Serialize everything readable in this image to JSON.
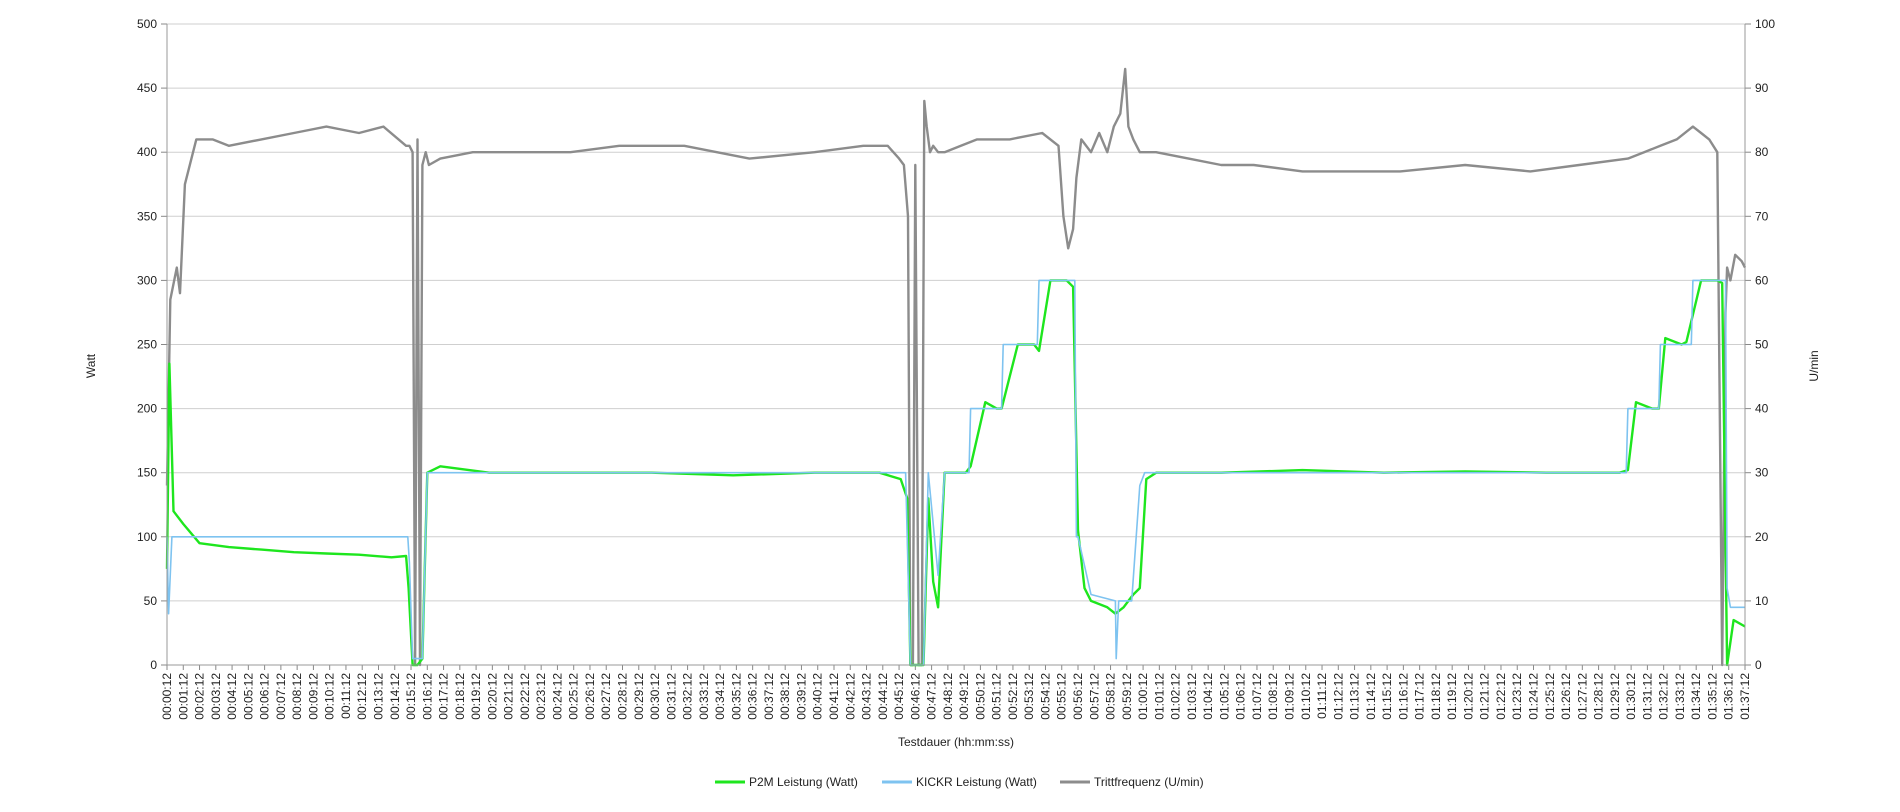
{
  "chart_data": {
    "type": "line",
    "title": "",
    "xlabel": "Testdauer (hh:mm:ss)",
    "ylabel_left": "Watt",
    "ylabel_right": "U/min",
    "ylim_left": [
      0,
      500
    ],
    "ylim_right": [
      0,
      100
    ],
    "yticks_left": [
      0,
      50,
      100,
      150,
      200,
      250,
      300,
      350,
      400,
      450,
      500
    ],
    "yticks_right": [
      0,
      10,
      20,
      30,
      40,
      50,
      60,
      70,
      80,
      90,
      100
    ],
    "grid": "horizontal",
    "legend_position": "bottom",
    "x_ticks": [
      "00:00:12",
      "00:01:12",
      "00:02:12",
      "00:03:12",
      "00:04:12",
      "00:05:12",
      "00:06:12",
      "00:07:12",
      "00:08:12",
      "00:09:12",
      "00:10:12",
      "00:11:12",
      "00:12:12",
      "00:13:12",
      "00:14:12",
      "00:15:12",
      "00:16:12",
      "00:17:12",
      "00:18:12",
      "00:19:12",
      "00:20:12",
      "00:21:12",
      "00:22:12",
      "00:23:12",
      "00:24:12",
      "00:25:12",
      "00:26:12",
      "00:27:12",
      "00:28:12",
      "00:29:12",
      "00:30:12",
      "00:31:12",
      "00:32:12",
      "00:33:12",
      "00:34:12",
      "00:35:12",
      "00:36:12",
      "00:37:12",
      "00:38:12",
      "00:39:12",
      "00:40:12",
      "00:41:12",
      "00:42:12",
      "00:43:12",
      "00:44:12",
      "00:45:12",
      "00:46:12",
      "00:47:12",
      "00:48:12",
      "00:49:12",
      "00:50:12",
      "00:51:12",
      "00:52:12",
      "00:53:12",
      "00:54:12",
      "00:55:12",
      "00:56:12",
      "00:57:12",
      "00:58:12",
      "00:59:12",
      "01:00:12",
      "01:01:12",
      "01:02:12",
      "01:03:12",
      "01:04:12",
      "01:05:12",
      "01:06:12",
      "01:07:12",
      "01:08:12",
      "01:09:12",
      "01:10:12",
      "01:11:12",
      "01:12:12",
      "01:13:12",
      "01:14:12",
      "01:15:12",
      "01:16:12",
      "01:17:12",
      "01:18:12",
      "01:19:12",
      "01:20:12",
      "01:21:12",
      "01:22:12",
      "01:23:12",
      "01:24:12",
      "01:25:12",
      "01:26:12",
      "01:27:12",
      "01:28:12",
      "01:29:12",
      "01:30:12",
      "01:31:12",
      "01:32:12",
      "01:33:12",
      "01:34:12",
      "01:35:12",
      "01:36:12",
      "01:37:12"
    ],
    "x_minutes_range": [
      0.2,
      97.2
    ],
    "series": [
      {
        "name": "P2M Leistung (Watt)",
        "axis": "left",
        "color": "#1ee61e",
        "x_minutes": [
          0.2,
          0.35,
          0.6,
          1.2,
          2.2,
          4.0,
          6.0,
          8.0,
          10.0,
          12.0,
          14.0,
          14.9,
          15.05,
          15.3,
          15.6,
          15.9,
          16.2,
          17.0,
          20.0,
          25.0,
          30.0,
          35.0,
          40.0,
          44.0,
          45.3,
          45.7,
          45.9,
          46.3,
          46.7,
          47.0,
          47.3,
          47.6,
          48.0,
          49.3,
          49.6,
          50.5,
          51.2,
          51.5,
          52.5,
          53.5,
          53.8,
          54.5,
          55.5,
          55.9,
          56.2,
          56.6,
          57.0,
          58.0,
          58.5,
          59.0,
          59.3,
          59.6,
          60.0,
          60.4,
          61.0,
          65.0,
          70.0,
          75.0,
          80.0,
          85.0,
          89.5,
          90.0,
          90.5,
          91.5,
          91.9,
          92.3,
          93.3,
          93.6,
          94.5,
          95.5,
          95.8,
          96.1,
          96.5,
          97.2
        ],
        "values": [
          75,
          235,
          120,
          110,
          95,
          92,
          90,
          88,
          87,
          86,
          84,
          85,
          60,
          0,
          0,
          5,
          150,
          155,
          150,
          150,
          150,
          148,
          150,
          150,
          145,
          130,
          0,
          0,
          0,
          130,
          65,
          45,
          150,
          150,
          155,
          205,
          200,
          200,
          250,
          250,
          245,
          300,
          300,
          295,
          105,
          60,
          50,
          45,
          40,
          45,
          50,
          55,
          60,
          145,
          150,
          150,
          152,
          150,
          151,
          150,
          150,
          152,
          205,
          200,
          200,
          255,
          250,
          252,
          300,
          300,
          298,
          0,
          35,
          30
        ]
      },
      {
        "name": "KICKR Leistung (Watt)",
        "axis": "left",
        "color": "#7ec3f0",
        "x_minutes": [
          0.2,
          0.3,
          0.5,
          1.0,
          15.0,
          15.1,
          15.3,
          15.9,
          16.2,
          45.6,
          45.9,
          46.7,
          47.0,
          47.6,
          48.0,
          49.5,
          49.6,
          51.5,
          51.6,
          53.7,
          53.8,
          56.0,
          56.1,
          56.2,
          57.0,
          58.5,
          58.55,
          58.7,
          59.5,
          60.0,
          60.3,
          89.9,
          90.0,
          91.9,
          92.0,
          93.9,
          94.0,
          96.0,
          96.1,
          96.3,
          97.2
        ],
        "values": [
          100,
          40,
          100,
          100,
          100,
          80,
          5,
          5,
          150,
          150,
          0,
          0,
          150,
          70,
          150,
          150,
          200,
          200,
          250,
          250,
          300,
          300,
          100,
          100,
          55,
          50,
          5,
          50,
          50,
          140,
          150,
          150,
          200,
          200,
          250,
          250,
          300,
          300,
          60,
          45,
          45
        ]
      },
      {
        "name": "Trittfrequenz  (U/min)",
        "axis": "right",
        "color": "#8c8c8c",
        "x_minutes": [
          0.2,
          0.4,
          0.8,
          1.0,
          1.3,
          2.0,
          3.0,
          4.0,
          6.0,
          8.0,
          10.0,
          12.0,
          13.5,
          14.9,
          15.1,
          15.3,
          15.45,
          15.6,
          15.75,
          15.9,
          16.1,
          16.3,
          17.0,
          19.0,
          22.0,
          25.0,
          28.0,
          32.0,
          36.0,
          40.0,
          43.0,
          44.5,
          45.2,
          45.5,
          45.75,
          45.9,
          46.05,
          46.2,
          46.4,
          46.6,
          46.75,
          46.9,
          47.1,
          47.3,
          47.6,
          48.0,
          49.0,
          50.0,
          52.0,
          54.0,
          55.0,
          55.3,
          55.6,
          55.9,
          56.1,
          56.4,
          57.0,
          57.5,
          58.0,
          58.4,
          58.8,
          59.1,
          59.3,
          59.6,
          60.0,
          61.0,
          63.0,
          65.0,
          67.0,
          70.0,
          73.0,
          76.0,
          80.0,
          84.0,
          87.0,
          90.0,
          91.0,
          92.0,
          93.0,
          94.0,
          94.5,
          95.0,
          95.5,
          95.8,
          96.0,
          96.1,
          96.3,
          96.6,
          97.0,
          97.2
        ],
        "values": [
          28,
          57,
          62,
          58,
          75,
          82,
          82,
          81,
          82,
          83,
          84,
          83,
          84,
          81,
          81,
          80,
          0,
          82,
          0,
          78,
          80,
          78,
          79,
          80,
          80,
          80,
          81,
          81,
          79,
          80,
          81,
          81,
          79,
          78,
          70,
          0,
          0,
          78,
          0,
          0,
          88,
          84,
          80,
          81,
          80,
          80,
          81,
          82,
          82,
          83,
          81,
          70,
          65,
          68,
          76,
          82,
          80,
          83,
          80,
          84,
          86,
          93,
          84,
          82,
          80,
          80,
          79,
          78,
          78,
          77,
          77,
          77,
          78,
          77,
          78,
          79,
          80,
          81,
          82,
          84,
          83,
          82,
          80,
          0,
          55,
          62,
          60,
          64,
          63,
          62
        ]
      }
    ]
  }
}
